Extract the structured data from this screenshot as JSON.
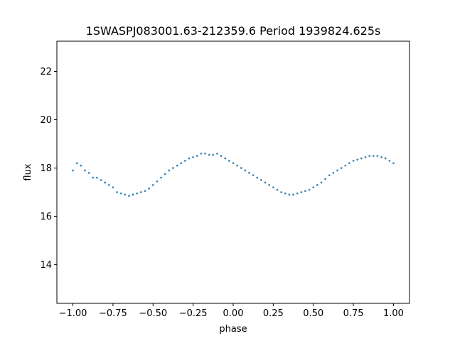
{
  "chart_data": {
    "type": "scatter",
    "title": "1SWASPJ083001.63-212359.6 Period 1939824.625s",
    "xlabel": "phase",
    "ylabel": "flux",
    "xlim": [
      -1.1,
      1.1
    ],
    "ylim": [
      12.4,
      23.25
    ],
    "grid": false,
    "legend": "none",
    "marker_color": "#1f77b4",
    "x_ticks": [
      -1.0,
      -0.75,
      -0.5,
      -0.25,
      0.0,
      0.25,
      0.5,
      0.75,
      1.0
    ],
    "x_tick_labels": [
      "−1.00",
      "−0.75",
      "−0.50",
      "−0.25",
      "0.00",
      "0.25",
      "0.50",
      "0.75",
      "1.00"
    ],
    "y_ticks": [
      14,
      16,
      18,
      20,
      22
    ],
    "y_tick_labels": [
      "14",
      "16",
      "18",
      "20",
      "22"
    ],
    "series": [
      {
        "x": [
          -1.0,
          -0.975,
          -0.95,
          -0.925,
          -0.9,
          -0.875,
          -0.85,
          -0.825,
          -0.8,
          -0.775,
          -0.75,
          -0.725,
          -0.7,
          -0.675,
          -0.65,
          -0.625,
          -0.6,
          -0.575,
          -0.55,
          -0.525,
          -0.5,
          -0.475,
          -0.45,
          -0.425,
          -0.4,
          -0.375,
          -0.35,
          -0.325,
          -0.3,
          -0.275,
          -0.25,
          -0.225,
          -0.2,
          -0.175,
          -0.15,
          -0.125,
          -0.1,
          -0.075,
          -0.05,
          -0.025,
          0.0,
          0.025,
          0.05,
          0.075,
          0.1,
          0.125,
          0.15,
          0.175,
          0.2,
          0.225,
          0.25,
          0.275,
          0.3,
          0.325,
          0.35,
          0.375,
          0.4,
          0.425,
          0.45,
          0.475,
          0.5,
          0.525,
          0.55,
          0.575,
          0.6,
          0.625,
          0.65,
          0.675,
          0.7,
          0.725,
          0.75,
          0.775,
          0.8,
          0.825,
          0.85,
          0.875,
          0.9,
          0.925,
          0.95,
          0.975,
          1.0
        ],
        "y": [
          17.9,
          18.2,
          18.1,
          17.9,
          17.8,
          17.6,
          17.6,
          17.5,
          17.4,
          17.3,
          17.2,
          17.0,
          16.95,
          16.9,
          16.85,
          16.9,
          16.95,
          17.0,
          17.05,
          17.15,
          17.3,
          17.45,
          17.6,
          17.75,
          17.9,
          18.0,
          18.1,
          18.2,
          18.3,
          18.4,
          18.45,
          18.5,
          18.6,
          18.6,
          18.55,
          18.55,
          18.6,
          18.5,
          18.4,
          18.3,
          18.2,
          18.1,
          18.0,
          17.9,
          17.8,
          17.7,
          17.6,
          17.5,
          17.4,
          17.3,
          17.2,
          17.1,
          17.0,
          16.95,
          16.9,
          16.9,
          16.95,
          17.0,
          17.05,
          17.1,
          17.2,
          17.3,
          17.4,
          17.55,
          17.7,
          17.8,
          17.9,
          18.0,
          18.1,
          18.2,
          18.3,
          18.35,
          18.4,
          18.45,
          18.5,
          18.5,
          18.5,
          18.45,
          18.4,
          18.3,
          18.2
        ]
      }
    ]
  }
}
